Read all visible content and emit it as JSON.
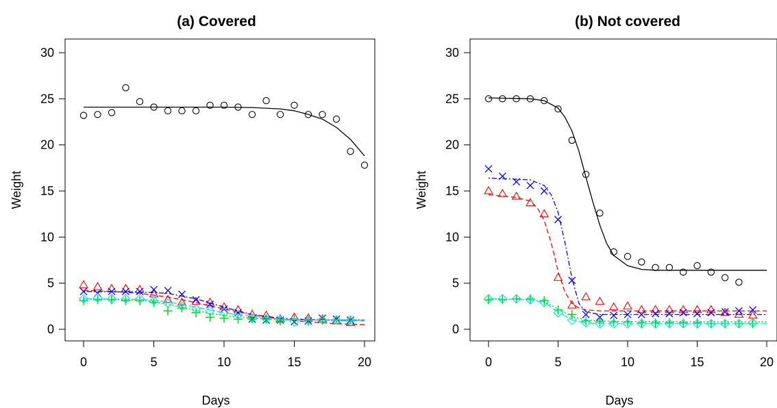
{
  "series_colors": {
    "black": "#000000",
    "red": "#ff0000",
    "blue": "#0000ff",
    "green": "#00cd00",
    "cyan": "#00e5ee"
  },
  "chart_data": [
    {
      "type": "scatter",
      "title": "(a) Covered",
      "xlabel": "Days",
      "ylabel": "Weight",
      "xlim": [
        0,
        20
      ],
      "ylim": [
        0,
        30
      ],
      "x_ticks": [
        0,
        5,
        10,
        15,
        20
      ],
      "y_ticks": [
        0,
        5,
        10,
        15,
        20,
        25,
        30
      ],
      "grid": false,
      "series": [
        {
          "color": "#000000",
          "marker": "circle",
          "line": "solid",
          "x": [
            0,
            1,
            2,
            3,
            4,
            5,
            6,
            7,
            8,
            9,
            10,
            11,
            12,
            13,
            14,
            15,
            16,
            17,
            18,
            19,
            20
          ],
          "y": [
            23.2,
            23.3,
            23.5,
            26.2,
            24.7,
            24.1,
            23.7,
            23.7,
            23.7,
            24.3,
            24.3,
            24.1,
            23.3,
            24.8,
            23.3,
            24.3,
            23.3,
            23.3,
            22.8,
            19.3,
            17.8
          ],
          "fit_x": [
            0,
            5,
            10,
            12,
            14,
            15,
            16,
            17,
            18,
            19,
            20
          ],
          "fit_y": [
            24.1,
            24.1,
            24.1,
            24.05,
            23.9,
            23.7,
            23.3,
            22.8,
            21.9,
            20.6,
            18.8
          ]
        },
        {
          "color": "#ff0000",
          "marker": "triangle",
          "line": "dashed",
          "x": [
            0,
            1,
            2,
            3,
            4,
            5,
            6,
            7,
            8,
            9,
            10,
            11,
            12,
            13,
            14,
            15,
            16,
            17,
            18,
            19
          ],
          "y": [
            4.8,
            4.6,
            4.4,
            4.4,
            4.3,
            3.8,
            3.2,
            2.9,
            3.0,
            2.9,
            2.4,
            2.1,
            1.6,
            1.5,
            1.1,
            1.3,
            1.2,
            1.1,
            0.9,
            0.7
          ],
          "fit_x": [
            0,
            2,
            4,
            6,
            8,
            10,
            12,
            14,
            16,
            18,
            20
          ],
          "fit_y": [
            4.2,
            4.1,
            3.9,
            3.5,
            2.9,
            2.2,
            1.6,
            1.1,
            0.8,
            0.6,
            0.5
          ]
        },
        {
          "color": "#0000ff",
          "marker": "x",
          "line": "dotdash",
          "x": [
            0,
            1,
            2,
            3,
            4,
            5,
            6,
            7,
            8,
            9,
            10,
            11,
            12,
            13,
            14,
            15,
            16,
            17,
            18,
            19
          ],
          "y": [
            4.1,
            3.9,
            4.1,
            4.1,
            4.1,
            4.3,
            4.2,
            3.8,
            3.2,
            2.7,
            2.2,
            1.8,
            1.1,
            1.0,
            1.0,
            0.8,
            0.9,
            1.2,
            1.1,
            1.0
          ],
          "fit_x": [
            0,
            4,
            6,
            8,
            10,
            12,
            14,
            16,
            18,
            20
          ],
          "fit_y": [
            4.1,
            4.05,
            3.9,
            3.3,
            2.4,
            1.6,
            1.2,
            1.05,
            1.0,
            1.0
          ]
        },
        {
          "color": "#00cd00",
          "marker": "plus",
          "line": "dotted",
          "x": [
            0,
            1,
            2,
            3,
            4,
            5,
            6,
            7,
            8,
            9,
            10,
            11,
            12,
            13,
            14,
            15,
            16,
            17,
            18,
            19
          ],
          "y": [
            3.1,
            3.2,
            3.2,
            3.1,
            3.1,
            2.9,
            2.0,
            2.3,
            1.8,
            1.3,
            1.2,
            1.1,
            1.1,
            1.1,
            0.9,
            1.1,
            1.0,
            1.0,
            1.0,
            1.0
          ],
          "fit_x": [
            0,
            3,
            5,
            7,
            9,
            11,
            13,
            15,
            17,
            20
          ],
          "fit_y": [
            3.3,
            3.2,
            3.0,
            2.4,
            1.7,
            1.3,
            1.1,
            1.0,
            1.0,
            1.0
          ]
        },
        {
          "color": "#00e5ee",
          "marker": "diamond",
          "line": "longdash",
          "x": [
            0,
            1,
            2,
            3,
            4,
            5,
            6,
            7,
            8,
            9,
            10,
            11,
            12,
            13,
            14,
            15,
            16,
            17,
            18,
            19
          ],
          "y": [
            3.3,
            3.4,
            3.3,
            3.3,
            3.3,
            3.1,
            2.8,
            2.5,
            2.2,
            2.0,
            1.8,
            1.6,
            1.2,
            1.1,
            1.0,
            0.8,
            0.9,
            1.0,
            1.0,
            1.0
          ],
          "fit_x": [
            0,
            4,
            6,
            8,
            10,
            12,
            14,
            16,
            18,
            20
          ],
          "fit_y": [
            3.3,
            3.25,
            3.0,
            2.4,
            1.8,
            1.4,
            1.1,
            1.0,
            0.95,
            0.9
          ]
        }
      ]
    },
    {
      "type": "scatter",
      "title": "(b) Not covered",
      "xlabel": "Days",
      "ylabel": "Weight",
      "xlim": [
        0,
        20
      ],
      "ylim": [
        0,
        30
      ],
      "x_ticks": [
        0,
        5,
        10,
        15,
        20
      ],
      "y_ticks": [
        0,
        5,
        10,
        15,
        20,
        25,
        30
      ],
      "grid": false,
      "series": [
        {
          "color": "#000000",
          "marker": "circle",
          "line": "solid",
          "x": [
            0,
            1,
            2,
            3,
            4,
            5,
            6,
            7,
            8,
            9,
            10,
            11,
            12,
            13,
            14,
            15,
            16,
            17,
            18
          ],
          "y": [
            25.0,
            25.0,
            25.0,
            25.0,
            24.8,
            23.9,
            20.5,
            16.8,
            12.6,
            8.4,
            7.9,
            7.3,
            6.7,
            6.7,
            6.2,
            6.9,
            6.2,
            5.6,
            5.1
          ],
          "fit_x": [
            0,
            3,
            4,
            5,
            5.5,
            6,
            6.5,
            7,
            7.5,
            8,
            8.5,
            9,
            10,
            11,
            12,
            20
          ],
          "fit_y": [
            25.1,
            25.0,
            24.8,
            24.0,
            23.0,
            21.5,
            19.3,
            16.5,
            13.8,
            11.3,
            9.3,
            8.0,
            6.9,
            6.5,
            6.4,
            6.4
          ]
        },
        {
          "color": "#ff0000",
          "marker": "triangle",
          "line": "dashed",
          "x": [
            0,
            1,
            2,
            3,
            4,
            5,
            6,
            7,
            8,
            9,
            10,
            11,
            12,
            13,
            14,
            15,
            16,
            17,
            18,
            19
          ],
          "y": [
            15.0,
            14.7,
            14.4,
            13.7,
            12.5,
            5.6,
            2.6,
            3.5,
            3.0,
            2.4,
            2.5,
            2.1,
            2.1,
            2.1,
            2.1,
            2.1,
            2.1,
            1.8,
            1.6,
            1.5
          ],
          "fit_x": [
            0,
            2,
            3,
            3.5,
            4,
            4.5,
            5,
            5.5,
            6,
            6.5,
            7,
            8,
            20
          ],
          "fit_y": [
            14.6,
            14.3,
            13.9,
            13.2,
            11.8,
            9.4,
            6.3,
            4.0,
            2.8,
            2.3,
            2.1,
            2.0,
            2.0
          ]
        },
        {
          "color": "#0000ff",
          "marker": "x",
          "line": "dotdash",
          "x": [
            0,
            1,
            2,
            3,
            4,
            5,
            6,
            7,
            8,
            9,
            10,
            11,
            12,
            13,
            14,
            15,
            16,
            17,
            18,
            19
          ],
          "y": [
            17.4,
            16.6,
            16.0,
            15.6,
            15.0,
            11.9,
            5.3,
            1.6,
            1.3,
            1.5,
            1.6,
            1.6,
            1.7,
            1.7,
            1.8,
            1.7,
            1.8,
            1.9,
            2.0,
            2.1
          ],
          "fit_x": [
            0,
            3,
            4,
            4.5,
            5,
            5.5,
            6,
            6.5,
            7,
            8,
            20
          ],
          "fit_y": [
            16.4,
            16.2,
            15.6,
            14.6,
            12.7,
            9.4,
            5.5,
            2.8,
            1.9,
            1.6,
            1.6
          ]
        },
        {
          "color": "#00cd00",
          "marker": "plus",
          "line": "dotted",
          "x": [
            0,
            1,
            2,
            3,
            4,
            5,
            6,
            7,
            8,
            9,
            10,
            11,
            12,
            13,
            14,
            15,
            16,
            17,
            18,
            19
          ],
          "y": [
            3.2,
            3.2,
            3.3,
            3.3,
            3.1,
            2.1,
            1.6,
            0.9,
            0.8,
            0.8,
            0.8,
            0.7,
            0.7,
            0.7,
            0.7,
            0.7,
            0.6,
            0.6,
            0.6,
            0.6
          ],
          "fit_x": [
            0,
            3,
            4,
            5,
            6,
            7,
            8,
            10,
            20
          ],
          "fit_y": [
            3.3,
            3.2,
            3.0,
            2.2,
            1.4,
            1.0,
            0.9,
            0.85,
            0.8
          ]
        },
        {
          "color": "#00e5ee",
          "marker": "diamond",
          "line": "longdash",
          "x": [
            0,
            1,
            2,
            3,
            4,
            5,
            6,
            7,
            8,
            9,
            10,
            11,
            12,
            13,
            14,
            15,
            16,
            17,
            18,
            19
          ],
          "y": [
            3.3,
            3.3,
            3.3,
            3.2,
            2.9,
            1.8,
            1.0,
            0.7,
            0.6,
            0.6,
            0.6,
            0.6,
            0.6,
            0.6,
            0.6,
            0.6,
            0.6,
            0.6,
            0.6,
            0.7
          ],
          "fit_x": [
            0,
            3,
            4,
            5,
            6,
            7,
            8,
            10,
            20
          ],
          "fit_y": [
            3.3,
            3.2,
            2.9,
            1.9,
            1.0,
            0.7,
            0.6,
            0.6,
            0.6
          ]
        }
      ]
    }
  ]
}
